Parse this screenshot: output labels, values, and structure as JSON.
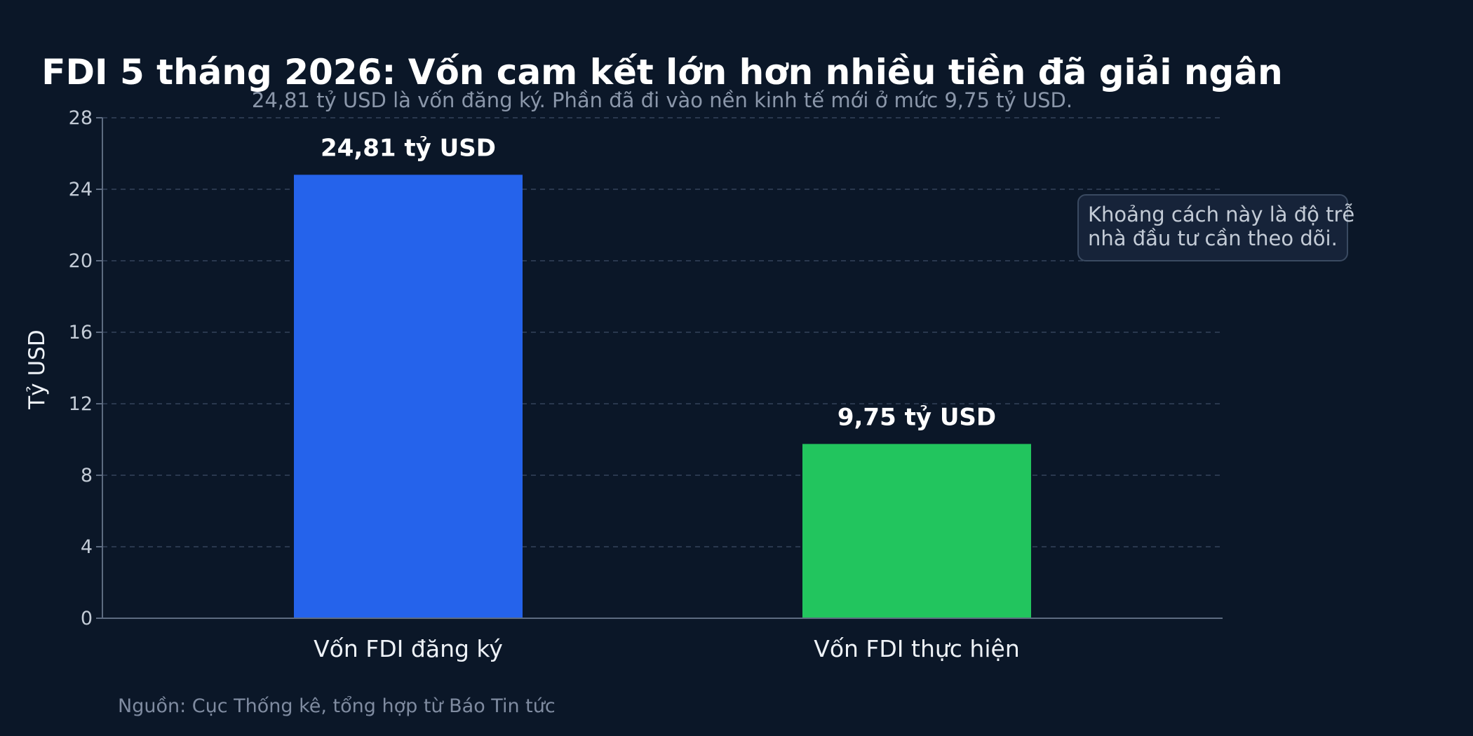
{
  "chart_data": {
    "type": "bar",
    "title": "FDI 5 tháng 2026: Vốn cam kết lớn hơn nhiều tiền đã giải ngân",
    "subtitle": "24,81 tỷ USD là vốn đăng ký. Phần đã đi vào nền kinh tế mới ở mức 9,75 tỷ USD.",
    "xlabel": "",
    "ylabel": "Tỷ USD",
    "ylim": [
      0,
      28
    ],
    "yticks": [
      0,
      4,
      8,
      12,
      16,
      20,
      24,
      28
    ],
    "grid": true,
    "categories": [
      "Vốn FDI đăng ký",
      "Vốn FDI thực hiện"
    ],
    "values": [
      24.81,
      9.75
    ],
    "data_labels": [
      "24,81 tỷ USD",
      "9,75 tỷ USD"
    ],
    "colors": [
      "#2563eb",
      "#22c55e"
    ],
    "annotation": [
      "Khoảng cách này là độ trễ",
      "nhà đầu tư cần theo dõi."
    ],
    "source": "Nguồn: Cục Thống kê, tổng hợp từ Báo Tin tức"
  },
  "theme": {
    "background": "#0b1728",
    "grid_color": "#34445a",
    "axis_color": "#5d6b80",
    "note_bg": "#162339",
    "note_border": "#3a4a61"
  }
}
